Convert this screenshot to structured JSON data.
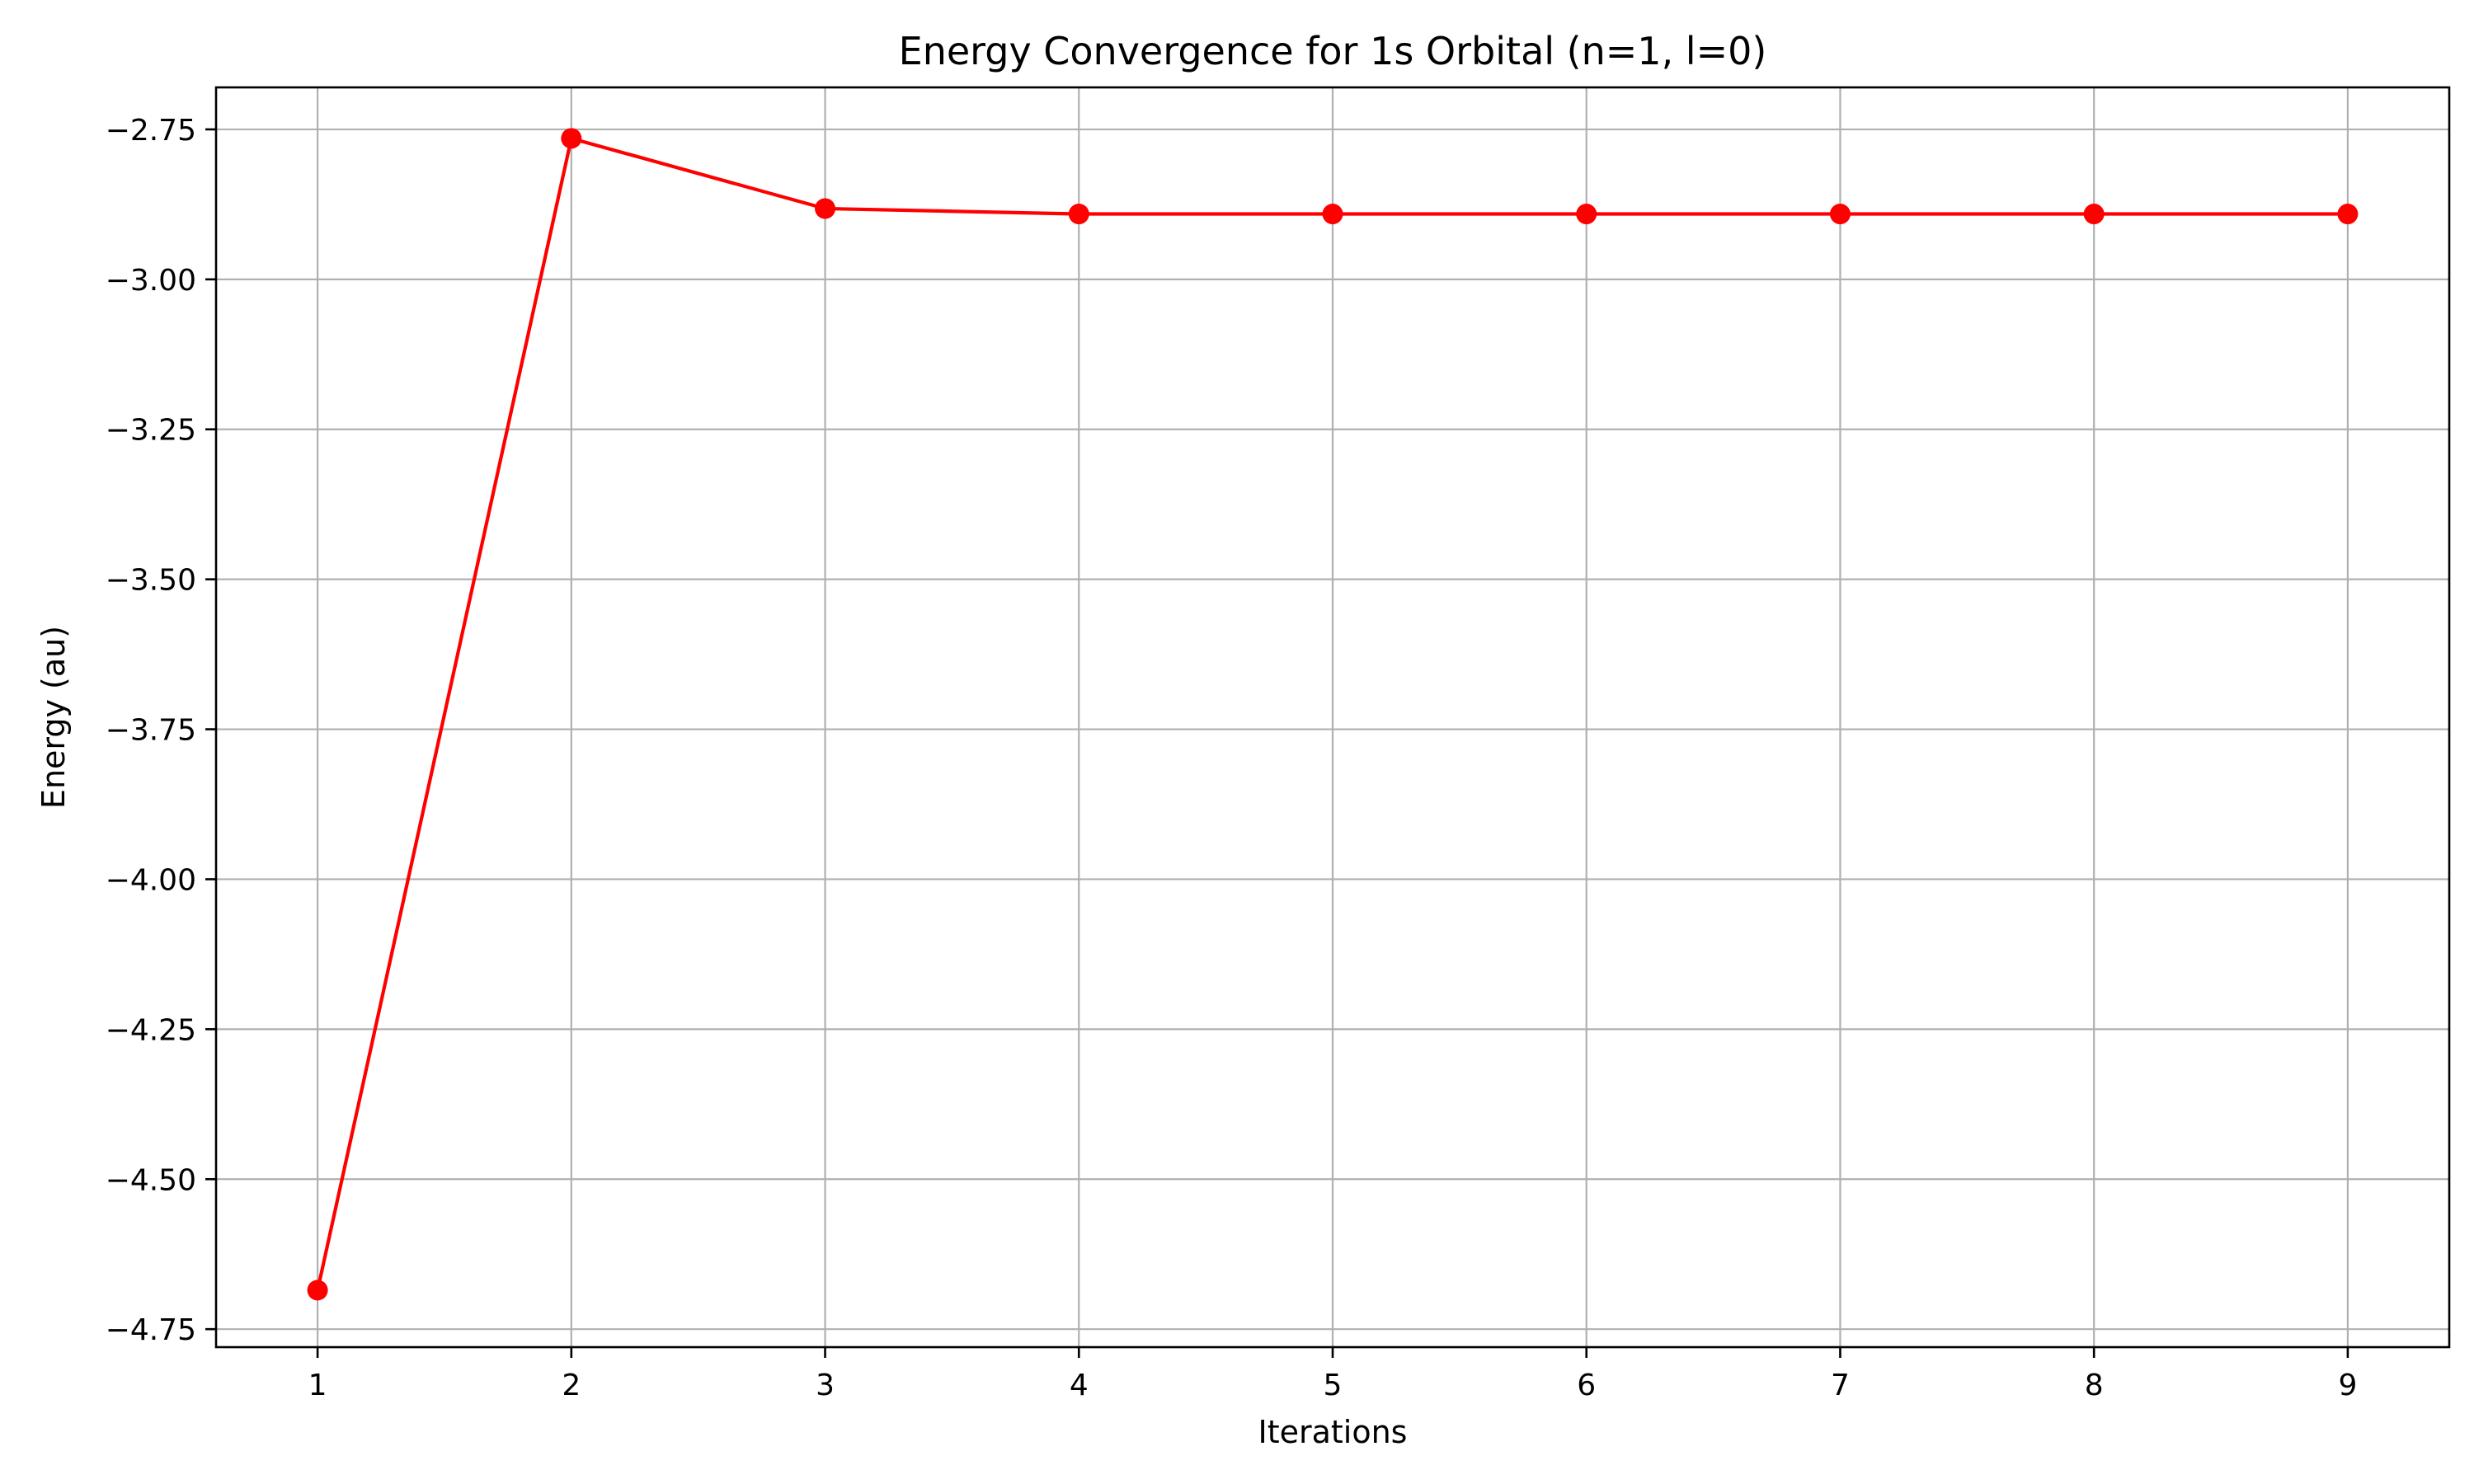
{
  "chart_data": {
    "type": "line",
    "title": "Energy Convergence for 1s Orbital (n=1, l=0)",
    "xlabel": "Iterations",
    "ylabel": "Energy (au)",
    "x": [
      1,
      2,
      3,
      4,
      5,
      6,
      7,
      8,
      9
    ],
    "series": [
      {
        "values": [
          -4.685,
          -2.765,
          -2.882,
          -2.891,
          -2.891,
          -2.891,
          -2.891,
          -2.891,
          -2.891
        ],
        "color": "#ff0000",
        "marker": "circle"
      }
    ],
    "xlim": [
      0.6,
      9.4
    ],
    "ylim": [
      -4.78,
      -2.68
    ],
    "xticks": [
      "1",
      "2",
      "3",
      "4",
      "5",
      "6",
      "7",
      "8",
      "9"
    ],
    "yticks": [
      "−2.75",
      "−3.00",
      "−3.25",
      "−3.50",
      "−3.75",
      "−4.00",
      "−4.25",
      "−4.50",
      "−4.75"
    ],
    "ytick_values": [
      -2.75,
      -3.0,
      -3.25,
      -3.5,
      -3.75,
      -4.0,
      -4.25,
      -4.5,
      -4.75
    ],
    "grid": true,
    "legend": "none"
  }
}
